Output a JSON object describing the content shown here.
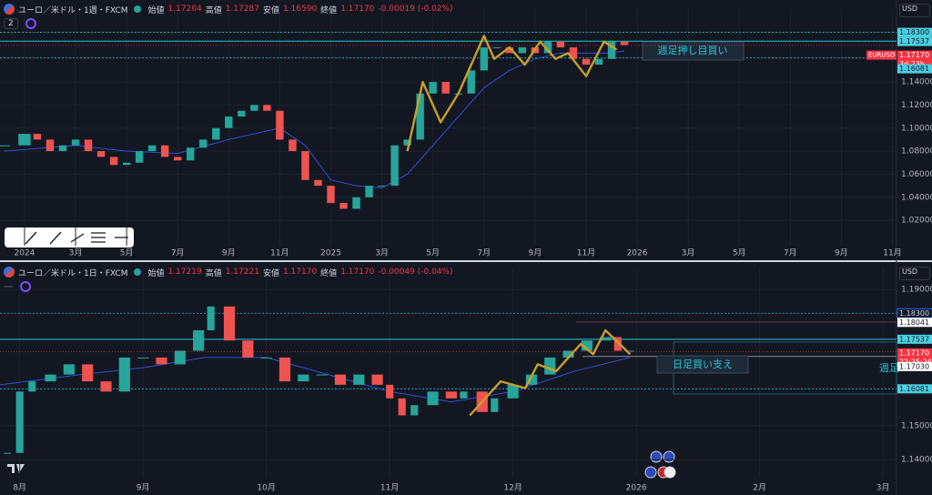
{
  "panels": [
    {
      "header": {
        "symbol": "ユーロ／米ドル・1週・FXCM",
        "ohlc": [
          {
            "name": "始値",
            "value": "1.17204"
          },
          {
            "name": "高値",
            "value": "1.17287"
          },
          {
            "name": "安値",
            "value": "1.16590"
          },
          {
            "name": "終値",
            "value": "1.17170"
          }
        ],
        "change": "-0.00019 (-0.02%)"
      },
      "badge": "2",
      "currency": "USD",
      "ylim": [
        0.998,
        1.1953
      ],
      "yticks": [
        {
          "value": 1.14,
          "label": "1.14000"
        },
        {
          "value": 1.12,
          "label": "1.12000"
        },
        {
          "value": 1.1,
          "label": "1.10000"
        },
        {
          "value": 1.08,
          "label": "1.08000"
        },
        {
          "value": 1.06,
          "label": "1.06000"
        },
        {
          "value": 1.04,
          "label": "1.04000"
        },
        {
          "value": 1.02,
          "label": "1.02000"
        }
      ],
      "xlim": [
        -0.96,
        34.16
      ],
      "xticks": [
        {
          "value": 0,
          "label": "2024"
        },
        {
          "value": 2,
          "label": "3月"
        },
        {
          "value": 4,
          "label": "5月"
        },
        {
          "value": 6,
          "label": "7月"
        },
        {
          "value": 8,
          "label": "9月"
        },
        {
          "value": 10,
          "label": "11月"
        },
        {
          "value": 12,
          "label": "2025"
        },
        {
          "value": 14,
          "label": "3月"
        },
        {
          "value": 16,
          "label": "5月"
        },
        {
          "value": 18,
          "label": "7月"
        },
        {
          "value": 20,
          "label": "9月"
        },
        {
          "value": 22,
          "label": "11月"
        },
        {
          "value": 24,
          "label": "2026"
        },
        {
          "value": 26,
          "label": "3月"
        },
        {
          "value": 28,
          "label": "5月"
        },
        {
          "value": 30,
          "label": "7月"
        },
        {
          "value": 32,
          "label": "9月"
        },
        {
          "value": 34,
          "label": "11月"
        }
      ],
      "price": {
        "x": [
          -0.8,
          0,
          0.5,
          1,
          1.5,
          2,
          2.5,
          3,
          3.5,
          4,
          4.5,
          5,
          5.5,
          6,
          6.5,
          7,
          7.5,
          8,
          8.5,
          9,
          9.5,
          10,
          10.5,
          11,
          11.5,
          12,
          12.5,
          13,
          13.5,
          14,
          14.5,
          15,
          15.5,
          16,
          16.5,
          17,
          17.5,
          18,
          18.5,
          19,
          19.5,
          20,
          20.5,
          21,
          21.5,
          22,
          22.5,
          23,
          23.5
        ],
        "values": [
          1.085,
          1.095,
          1.09,
          1.08,
          1.085,
          1.09,
          1.08,
          1.075,
          1.068,
          1.07,
          1.08,
          1.085,
          1.075,
          1.072,
          1.083,
          1.09,
          1.1,
          1.11,
          1.115,
          1.12,
          1.115,
          1.09,
          1.08,
          1.055,
          1.05,
          1.035,
          1.03,
          1.04,
          1.05,
          1.05,
          1.085,
          1.09,
          1.13,
          1.14,
          1.13,
          1.13,
          1.15,
          1.17,
          1.17,
          1.165,
          1.17,
          1.165,
          1.175,
          1.17,
          1.16,
          1.155,
          1.16,
          1.175,
          1.172
        ]
      },
      "ma": {
        "color": "#2f4fd8",
        "x": [
          -0.8,
          2,
          4,
          6,
          8,
          10,
          11,
          12,
          13,
          14,
          15,
          16,
          17,
          18,
          19,
          20,
          21,
          22,
          23,
          23.5
        ],
        "values": [
          1.08,
          1.085,
          1.08,
          1.078,
          1.09,
          1.1,
          1.085,
          1.055,
          1.05,
          1.048,
          1.06,
          1.085,
          1.11,
          1.135,
          1.15,
          1.16,
          1.165,
          1.165,
          1.165,
          1.167
        ]
      },
      "zigzag": {
        "color": "#c8a02a",
        "x": [
          15,
          15.6,
          16.3,
          17,
          18,
          18.4,
          19,
          19.6,
          20.2,
          20.8,
          21.3,
          22,
          22.7,
          23.2
        ],
        "values": [
          1.08,
          1.14,
          1.105,
          1.13,
          1.18,
          1.16,
          1.17,
          1.155,
          1.175,
          1.16,
          1.165,
          1.145,
          1.175,
          1.168
        ]
      },
      "levels": [
        {
          "value": 1.183,
          "style": "dotted"
        },
        {
          "value": 1.17537,
          "style": "solid"
        },
        {
          "value": 1.16081,
          "style": "dotted"
        }
      ],
      "tags": [
        {
          "value": 1.183,
          "label": "1.18300",
          "kind": "level"
        },
        {
          "value": 1.17537,
          "label": "1.17537",
          "kind": "level"
        },
        {
          "value": 1.1717,
          "label": "1.17170",
          "kind": "current",
          "note": "3d 23h"
        },
        {
          "value": 1.16081,
          "label": "1.16081",
          "kind": "level"
        }
      ],
      "symbol_tag": "EURUSD",
      "annotations": [
        {
          "text": "週足押し目買い"
        }
      ]
    },
    {
      "header": {
        "symbol": "ユーロ／米ドル・1日・FXCM",
        "ohlc": [
          {
            "name": "始値",
            "value": "1.17219"
          },
          {
            "name": "高値",
            "value": "1.17221"
          },
          {
            "name": "安値",
            "value": "1.17170"
          },
          {
            "name": "終値",
            "value": "1.17170"
          }
        ],
        "change": "-0.00049 (-0.04%)"
      },
      "currency": "USD",
      "ylim": [
        1.1347,
        1.1935
      ],
      "yticks": [
        {
          "value": 1.19,
          "label": "1.19000"
        },
        {
          "value": 1.15,
          "label": "1.15000"
        },
        {
          "value": 1.14,
          "label": "1.14000"
        }
      ],
      "xlim": [
        -0.16,
        7.11
      ],
      "xticks": [
        {
          "value": 0,
          "label": "8月"
        },
        {
          "value": 1,
          "label": "9月"
        },
        {
          "value": 2,
          "label": "10月"
        },
        {
          "value": 3,
          "label": "11月"
        },
        {
          "value": 4,
          "label": "12月"
        },
        {
          "value": 5,
          "label": "2026"
        },
        {
          "value": 6,
          "label": "2月"
        },
        {
          "value": 7,
          "label": "3月"
        }
      ],
      "price": {
        "x": [
          -0.1,
          0,
          0.1,
          0.25,
          0.4,
          0.55,
          0.7,
          0.85,
          1,
          1.15,
          1.3,
          1.45,
          1.55,
          1.7,
          1.85,
          2,
          2.15,
          2.3,
          2.45,
          2.6,
          2.75,
          2.9,
          3,
          3.1,
          3.2,
          3.35,
          3.5,
          3.6,
          3.75,
          3.85,
          4,
          4.15,
          4.3,
          4.45,
          4.6,
          4.75,
          4.85,
          4.95
        ],
        "values": [
          1.142,
          1.16,
          1.163,
          1.165,
          1.168,
          1.163,
          1.16,
          1.17,
          1.17,
          1.168,
          1.172,
          1.178,
          1.185,
          1.175,
          1.17,
          1.17,
          1.163,
          1.165,
          1.165,
          1.162,
          1.165,
          1.162,
          1.158,
          1.153,
          1.156,
          1.16,
          1.158,
          1.16,
          1.154,
          1.158,
          1.162,
          1.165,
          1.17,
          1.172,
          1.175,
          1.176,
          1.172,
          1.172
        ]
      },
      "ma": {
        "color": "#2f4fd8",
        "x": [
          -0.16,
          0.5,
          1,
          1.5,
          2,
          2.5,
          3,
          3.5,
          4,
          4.5,
          4.95
        ],
        "values": [
          1.162,
          1.165,
          1.167,
          1.17,
          1.17,
          1.165,
          1.16,
          1.157,
          1.16,
          1.166,
          1.17
        ]
      },
      "zigzag": {
        "color": "#c8a02a",
        "x": [
          3.65,
          3.9,
          4.1,
          4.2,
          4.35,
          4.55,
          4.65,
          4.75,
          4.95
        ],
        "values": [
          1.153,
          1.163,
          1.161,
          1.168,
          1.166,
          1.174,
          1.171,
          1.178,
          1.171
        ]
      },
      "levels": [
        {
          "value": 1.183,
          "style": "dotted"
        },
        {
          "value": 1.17537,
          "style": "solid"
        },
        {
          "value": 1.16081,
          "style": "dotted"
        }
      ],
      "tags": [
        {
          "value": 1.183,
          "label": "1.18300",
          "kind": "outline"
        },
        {
          "value": 1.18041,
          "label": "1.18041",
          "kind": "white"
        },
        {
          "value": 1.17537,
          "label": "1.17537",
          "kind": "level"
        },
        {
          "value": 1.1717,
          "label": "1.17170",
          "kind": "current",
          "note": "22:25:26"
        },
        {
          "value": 1.1703,
          "label": "1.17030",
          "kind": "white"
        },
        {
          "value": 1.16081,
          "label": "1.16081",
          "kind": "level"
        }
      ],
      "annotations": [
        {
          "text": "日足買い支え"
        },
        {
          "text": "週足"
        }
      ]
    }
  ]
}
